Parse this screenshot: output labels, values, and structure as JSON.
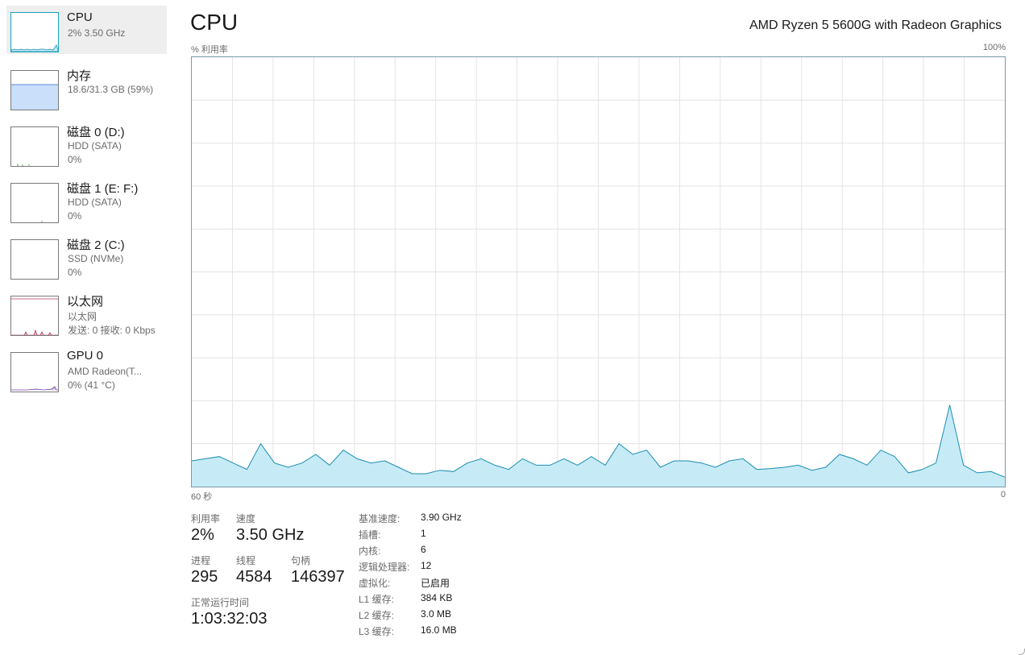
{
  "sidebar": {
    "items": [
      {
        "title": "CPU",
        "sub1": "2% 3.50 GHz",
        "sub2": ""
      },
      {
        "title": "内存",
        "sub1": "18.6/31.3 GB (59%)",
        "sub2": ""
      },
      {
        "title": "磁盘 0 (D:)",
        "sub1": "HDD (SATA)",
        "sub2": "0%"
      },
      {
        "title": "磁盘 1 (E: F:)",
        "sub1": "HDD (SATA)",
        "sub2": "0%"
      },
      {
        "title": "磁盘 2 (C:)",
        "sub1": "SSD (NVMe)",
        "sub2": "0%"
      },
      {
        "title": "以太网",
        "sub1": "以太网",
        "sub2": "发送: 0 接收: 0 Kbps"
      },
      {
        "title": "GPU 0",
        "sub1": "AMD Radeon(T...",
        "sub2": "0% (41 °C)"
      }
    ]
  },
  "header": {
    "title": "CPU",
    "model": "AMD Ryzen 5 5600G with Radeon Graphics",
    "y_label": "% 利用率",
    "y_max": "100%",
    "x_left": "60 秒",
    "x_right": "0"
  },
  "colors": {
    "cpu_line": "#1b8db0",
    "cpu_fill": "#c6ebf6",
    "memory_fill": "#c9dffa",
    "memory_line": "#5b8ed6",
    "network_line": "#b03a5b",
    "gpu_line": "#7a3fa8",
    "grid": "#e4e4e4"
  },
  "chart_data": {
    "type": "area",
    "ylim": [
      0,
      100
    ],
    "xlim": [
      60,
      0
    ],
    "values": [
      6,
      6.5,
      7,
      5.5,
      4,
      10,
      5.5,
      4.5,
      5.5,
      7.5,
      5,
      8.5,
      6.5,
      5.5,
      6,
      4.5,
      3,
      3,
      3.8,
      3.5,
      5.5,
      6.5,
      5,
      4,
      6.5,
      5,
      5,
      6.5,
      5,
      7,
      5,
      10,
      7.5,
      8.5,
      4.5,
      6,
      6,
      5.5,
      4.5,
      6,
      6.5,
      4,
      4.2,
      4.5,
      5,
      3.8,
      4.5,
      7.5,
      6.5,
      5,
      8.5,
      7,
      3.2,
      4,
      5.5,
      19,
      5,
      3.2,
      3.5,
      2.2
    ]
  },
  "stats": {
    "utilization_label": "利用率",
    "utilization_value": "2%",
    "speed_label": "速度",
    "speed_value": "3.50 GHz",
    "processes_label": "进程",
    "processes_value": "295",
    "threads_label": "线程",
    "threads_value": "4584",
    "handles_label": "句柄",
    "handles_value": "146397",
    "uptime_label": "正常运行时间",
    "uptime_value": "1:03:32:03"
  },
  "details": [
    {
      "key": "基准速度:",
      "value": "3.90 GHz"
    },
    {
      "key": "插槽:",
      "value": "1"
    },
    {
      "key": "内核:",
      "value": "6"
    },
    {
      "key": "逻辑处理器:",
      "value": "12"
    },
    {
      "key": "虚拟化:",
      "value": "已启用"
    },
    {
      "key": "L1 缓存:",
      "value": "384 KB"
    },
    {
      "key": "L2 缓存:",
      "value": "3.0 MB"
    },
    {
      "key": "L3 缓存:",
      "value": "16.0 MB"
    }
  ]
}
